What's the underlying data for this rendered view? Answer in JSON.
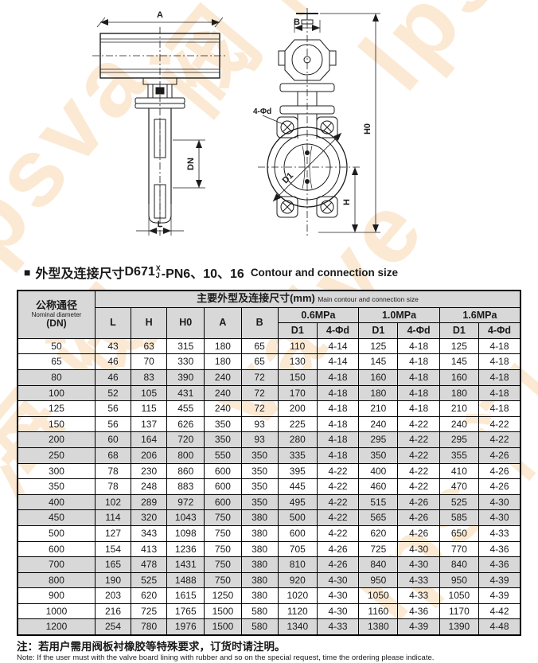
{
  "watermark": {
    "color": "#fbe9d3",
    "items": [
      {
        "text": "psva"
      },
      {
        "text": "阀 门"
      },
      {
        "text": "lpsv"
      },
      {
        "text": "海 阀"
      },
      {
        "text": "valve"
      },
      {
        "text": "lps 门"
      }
    ]
  },
  "drawings": {
    "left_labels": {
      "a": "A",
      "dn": "DN",
      "l": "L"
    },
    "right_labels": {
      "b": "B",
      "h0": "H0",
      "h": "H",
      "d1": "D1",
      "holes": "4-Φd"
    }
  },
  "title": {
    "bullet": "■",
    "cn": "外型及连接尺寸",
    "model_prefix": "D671",
    "model_sup": "X",
    "model_sub": "J",
    "model_suffix": "-PN6、10、16",
    "en": "Contour and connection size"
  },
  "table": {
    "col1": {
      "cn": "公称通径",
      "en": "Nominal diameter",
      "unit": "(DN)"
    },
    "group": {
      "cn": "主要外型及连接尺寸(mm)",
      "en": "Main contour and connection size"
    },
    "dim_headers": [
      "L",
      "H",
      "H0",
      "A",
      "B"
    ],
    "pressure_headers": [
      "0.6MPa",
      "1.0MPa",
      "1.6MPa"
    ],
    "sub_headers": [
      "D1",
      "4-Φd"
    ],
    "rows": [
      {
        "dn": "50",
        "shaded": false,
        "values": [
          "43",
          "63",
          "315",
          "180",
          "65",
          "110",
          "4-14",
          "125",
          "4-18",
          "125",
          "4-18"
        ]
      },
      {
        "dn": "65",
        "shaded": false,
        "values": [
          "46",
          "70",
          "330",
          "180",
          "65",
          "130",
          "4-14",
          "145",
          "4-18",
          "145",
          "4-18"
        ]
      },
      {
        "dn": "80",
        "shaded": true,
        "values": [
          "46",
          "83",
          "390",
          "240",
          "72",
          "150",
          "4-18",
          "160",
          "4-18",
          "160",
          "4-18"
        ]
      },
      {
        "dn": "100",
        "shaded": true,
        "values": [
          "52",
          "105",
          "431",
          "240",
          "72",
          "170",
          "4-18",
          "180",
          "4-18",
          "180",
          "4-18"
        ]
      },
      {
        "dn": "125",
        "shaded": false,
        "values": [
          "56",
          "115",
          "455",
          "240",
          "72",
          "200",
          "4-18",
          "210",
          "4-18",
          "210",
          "4-18"
        ]
      },
      {
        "dn": "150",
        "shaded": false,
        "values": [
          "56",
          "137",
          "626",
          "350",
          "93",
          "225",
          "4-18",
          "240",
          "4-22",
          "240",
          "4-22"
        ]
      },
      {
        "dn": "200",
        "shaded": true,
        "values": [
          "60",
          "164",
          "720",
          "350",
          "93",
          "280",
          "4-18",
          "295",
          "4-22",
          "295",
          "4-22"
        ]
      },
      {
        "dn": "250",
        "shaded": true,
        "values": [
          "68",
          "206",
          "800",
          "550",
          "350",
          "335",
          "4-18",
          "350",
          "4-22",
          "355",
          "4-26"
        ]
      },
      {
        "dn": "300",
        "shaded": false,
        "values": [
          "78",
          "230",
          "860",
          "600",
          "350",
          "395",
          "4-22",
          "400",
          "4-22",
          "410",
          "4-26"
        ]
      },
      {
        "dn": "350",
        "shaded": false,
        "values": [
          "78",
          "248",
          "883",
          "600",
          "350",
          "445",
          "4-22",
          "460",
          "4-22",
          "470",
          "4-26"
        ]
      },
      {
        "dn": "400",
        "shaded": true,
        "values": [
          "102",
          "289",
          "972",
          "600",
          "350",
          "495",
          "4-22",
          "515",
          "4-26",
          "525",
          "4-30"
        ]
      },
      {
        "dn": "450",
        "shaded": true,
        "values": [
          "114",
          "320",
          "1043",
          "750",
          "380",
          "500",
          "4-22",
          "565",
          "4-26",
          "585",
          "4-30"
        ]
      },
      {
        "dn": "500",
        "shaded": false,
        "values": [
          "127",
          "343",
          "1098",
          "750",
          "380",
          "600",
          "4-22",
          "620",
          "4-26",
          "650",
          "4-33"
        ]
      },
      {
        "dn": "600",
        "shaded": false,
        "values": [
          "154",
          "413",
          "1236",
          "750",
          "380",
          "705",
          "4-26",
          "725",
          "4-30",
          "770",
          "4-36"
        ]
      },
      {
        "dn": "700",
        "shaded": true,
        "values": [
          "165",
          "478",
          "1431",
          "750",
          "380",
          "810",
          "4-26",
          "840",
          "4-30",
          "840",
          "4-36"
        ]
      },
      {
        "dn": "800",
        "shaded": true,
        "values": [
          "190",
          "525",
          "1488",
          "750",
          "380",
          "920",
          "4-30",
          "950",
          "4-33",
          "950",
          "4-39"
        ]
      },
      {
        "dn": "900",
        "shaded": false,
        "values": [
          "203",
          "620",
          "1615",
          "1250",
          "380",
          "1020",
          "4-30",
          "1050",
          "4-33",
          "1050",
          "4-39"
        ]
      },
      {
        "dn": "1000",
        "shaded": false,
        "values": [
          "216",
          "725",
          "1765",
          "1500",
          "580",
          "1120",
          "4-30",
          "1160",
          "4-36",
          "1170",
          "4-42"
        ]
      },
      {
        "dn": "1200",
        "shaded": true,
        "values": [
          "254",
          "780",
          "1976",
          "1500",
          "580",
          "1340",
          "4-33",
          "1380",
          "4-39",
          "1390",
          "4-48"
        ]
      }
    ]
  },
  "note": {
    "cn": "注：若用户需用阀板衬橡胶等特殊要求，订货时请注明。",
    "en": "Note: If the user must with the valve board lining with rubber and so on the special request, time the ordering please indicate."
  }
}
